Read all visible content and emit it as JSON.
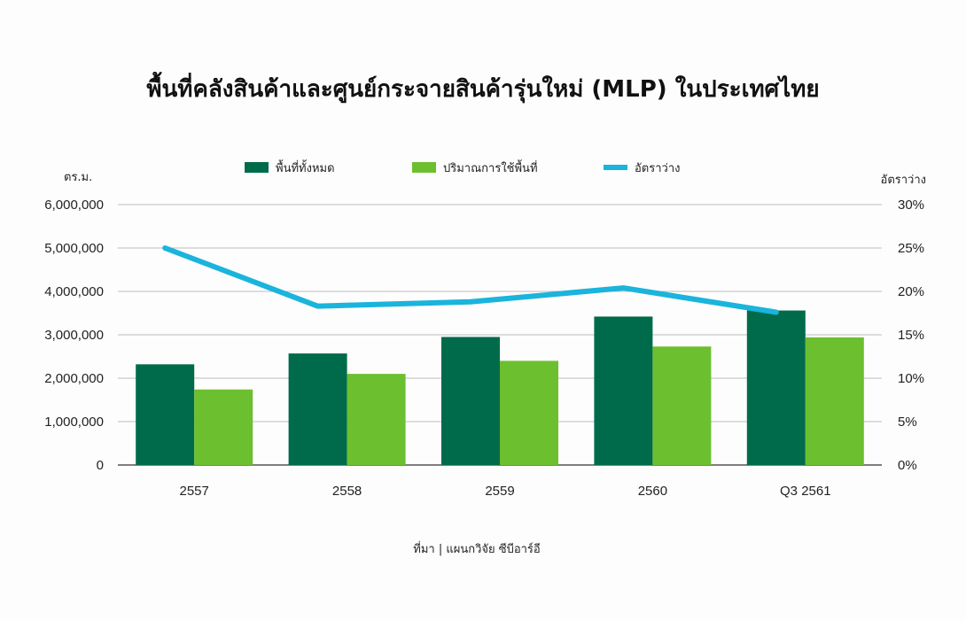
{
  "chart_data": {
    "type": "bar",
    "title": "พื้นที่คลังสินค้าและศูนย์กระจายสินค้ารุ่นใหม่ (MLP) ในประเทศไทย",
    "ylabel_left": "ตร.ม.",
    "ylabel_right": "อัตราว่าง",
    "categories": [
      "2557",
      "2558",
      "2559",
      "2560",
      "Q3 2561"
    ],
    "series": [
      {
        "name": "พื้นที่ทั้งหมด",
        "type": "bar",
        "axis": "left",
        "color": "#006b4a",
        "values": [
          2320000,
          2570000,
          2950000,
          3420000,
          3560000
        ]
      },
      {
        "name": "ปริมาณการใช้พื้นที่",
        "type": "bar",
        "axis": "left",
        "color": "#6cbf2e",
        "values": [
          1740000,
          2100000,
          2400000,
          2730000,
          2940000
        ]
      },
      {
        "name": "อัตราว่าง",
        "type": "line",
        "axis": "right",
        "color": "#1ab4dc",
        "values": [
          25,
          18.3,
          18.8,
          20.4,
          17.6
        ]
      }
    ],
    "ylim_left": [
      0,
      6000000
    ],
    "ylim_right": [
      0,
      30
    ],
    "yticks_left": [
      "0",
      "1,000,000",
      "2,000,000",
      "3,000,000",
      "4,000,000",
      "5,000,000",
      "6,000,000"
    ],
    "yticks_right": [
      "0%",
      "5%",
      "10%",
      "15%",
      "20%",
      "25%",
      "30%"
    ],
    "grid": true,
    "legend_position": "top",
    "source": "ที่มา | แผนกวิจัย ซีบีอาร์อี"
  }
}
